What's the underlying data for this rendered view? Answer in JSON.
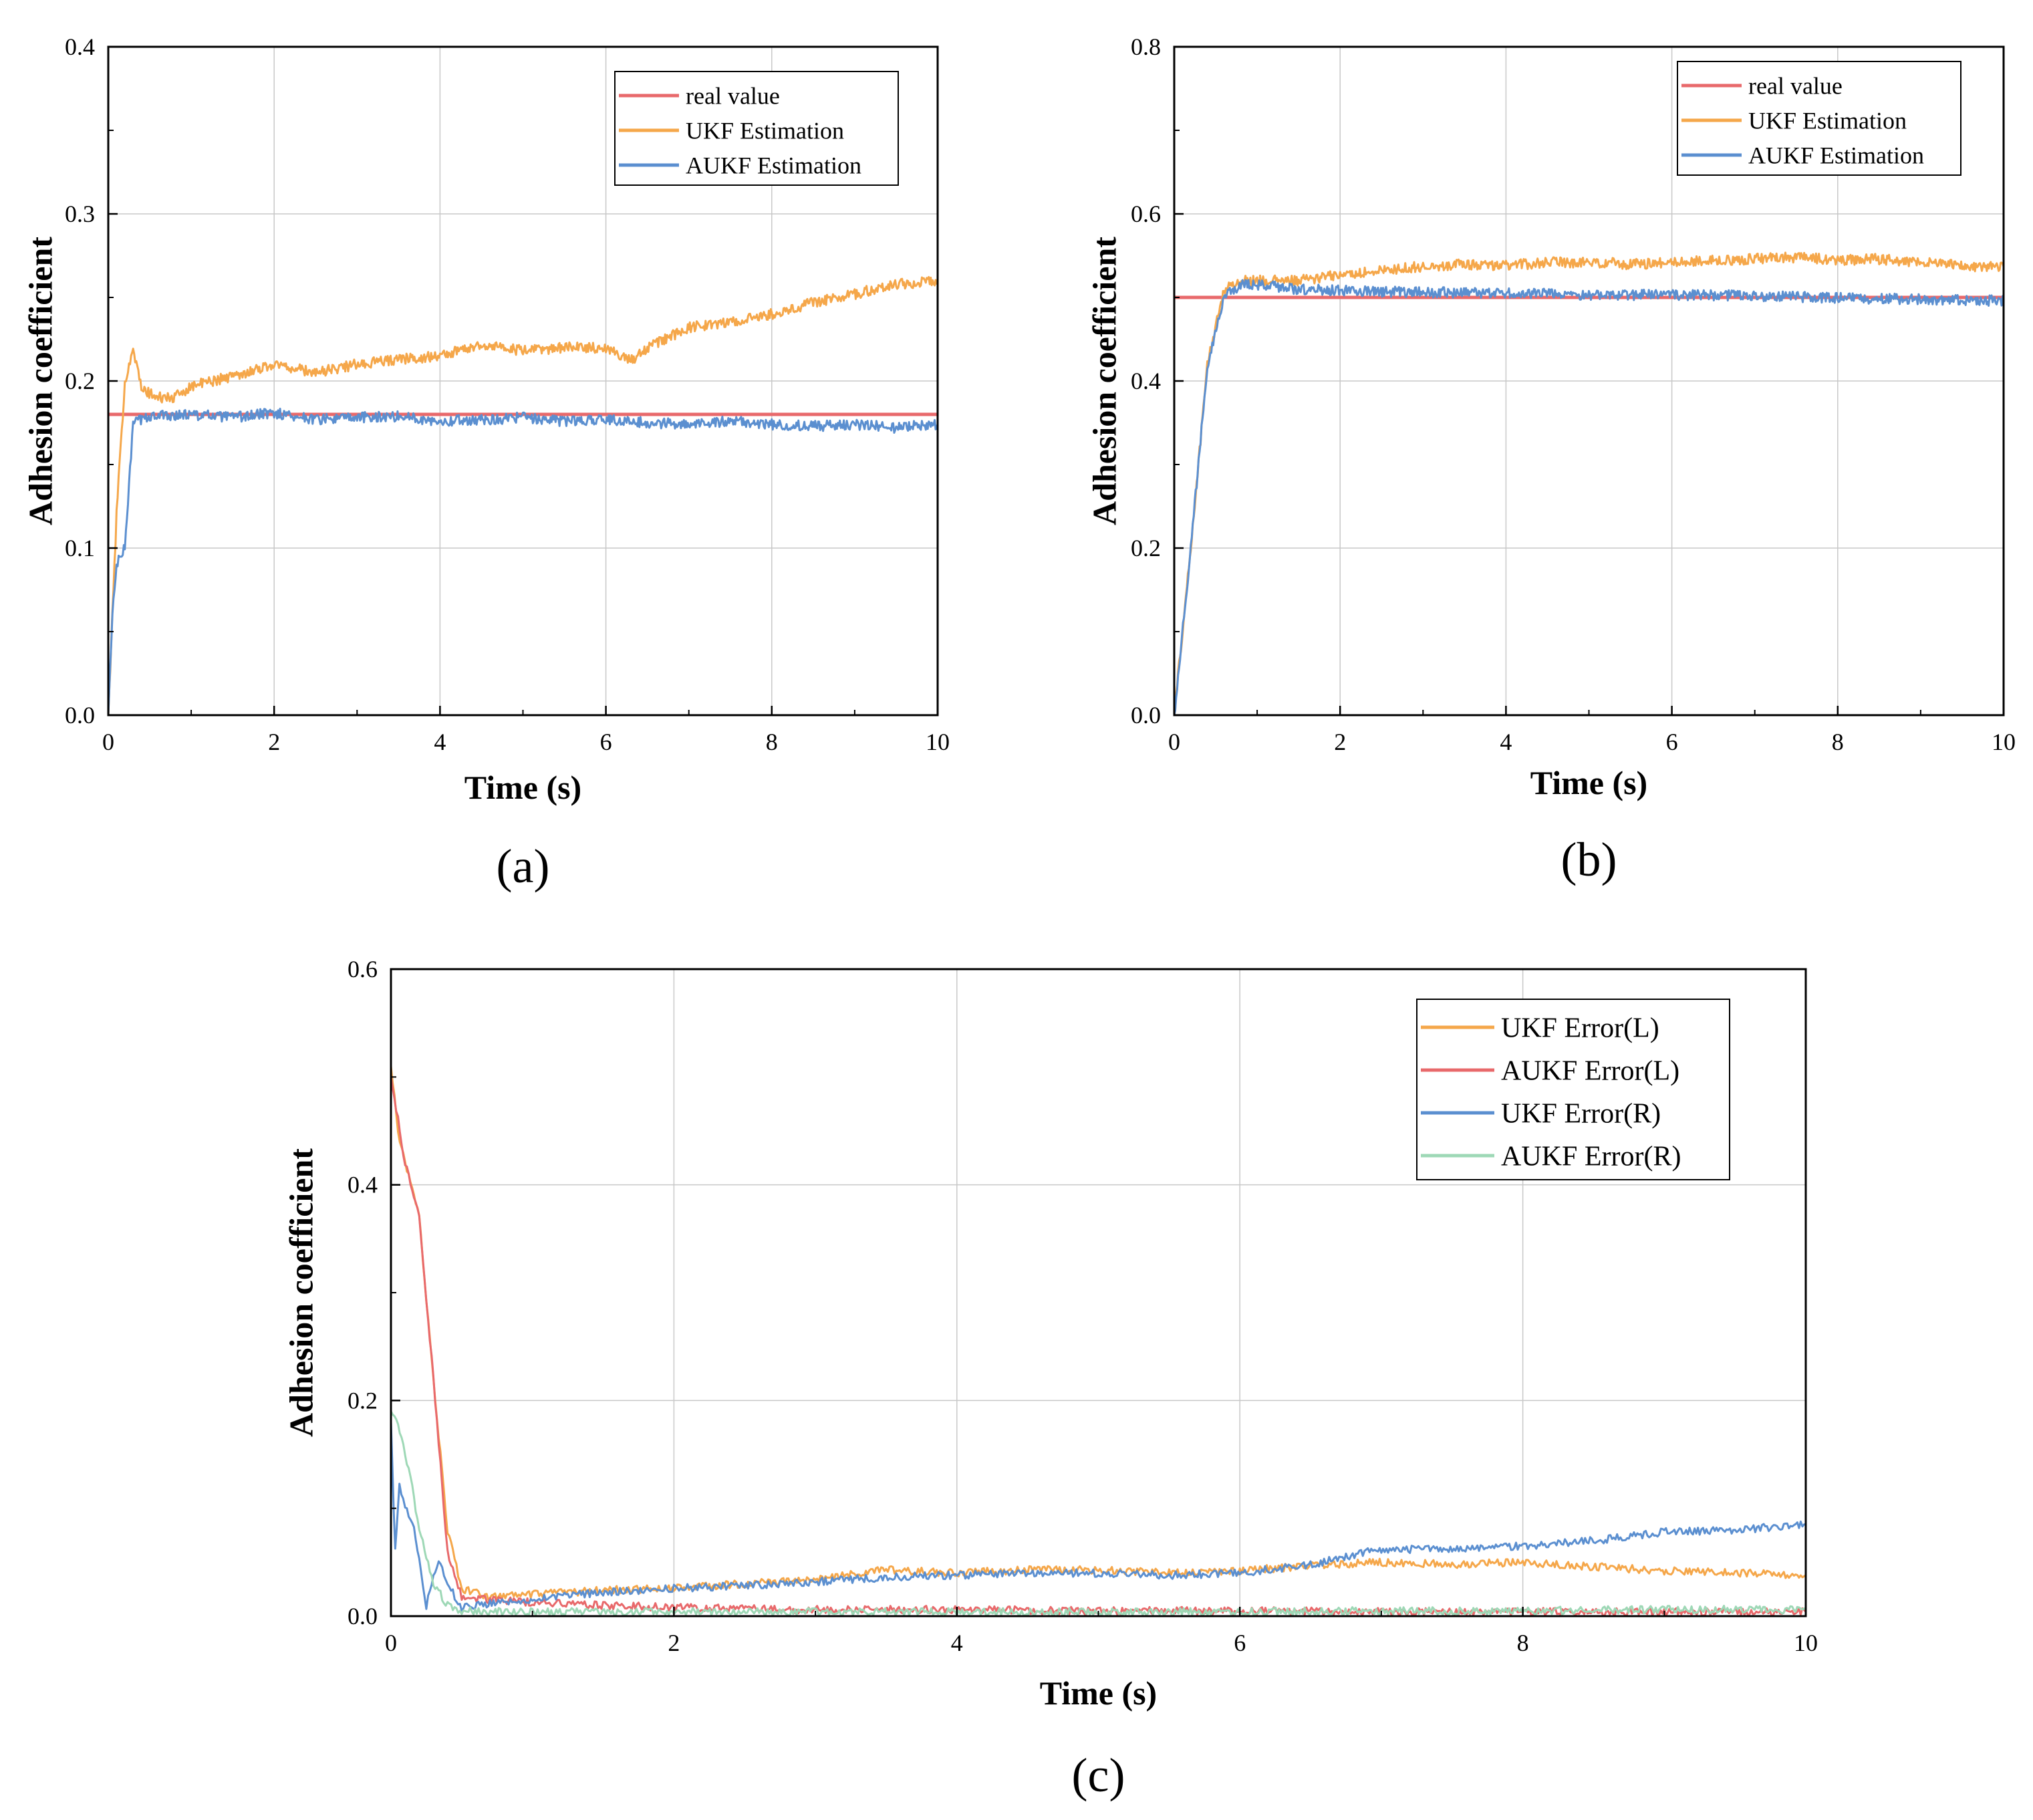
{
  "chart_data": [
    {
      "id": "a",
      "type": "line",
      "panel_label": "(a)",
      "xlabel": "Time (s)",
      "ylabel": "Adhesion coefficient",
      "xlim": [
        0,
        10
      ],
      "ylim": [
        0,
        0.4
      ],
      "xticks": [
        "0",
        "2",
        "4",
        "6",
        "8",
        "10"
      ],
      "yticks": [
        "0.0",
        "0.1",
        "0.2",
        "0.3",
        "0.4"
      ],
      "grid": true,
      "legend_position": "top-right",
      "series": [
        {
          "name": "real value",
          "color": "#e8696b",
          "points": [
            [
              0,
              0.18
            ],
            [
              10,
              0.18
            ]
          ]
        },
        {
          "name": "UKF Estimation",
          "color": "#f5a74a",
          "points": [
            [
              0,
              0.0
            ],
            [
              0.1,
              0.12
            ],
            [
              0.2,
              0.2
            ],
            [
              0.3,
              0.22
            ],
            [
              0.4,
              0.195
            ],
            [
              0.6,
              0.19
            ],
            [
              0.8,
              0.19
            ],
            [
              1,
              0.197
            ],
            [
              1.5,
              0.203
            ],
            [
              2,
              0.21
            ],
            [
              2.5,
              0.205
            ],
            [
              3,
              0.21
            ],
            [
              3.5,
              0.213
            ],
            [
              4,
              0.215
            ],
            [
              4.5,
              0.222
            ],
            [
              5,
              0.218
            ],
            [
              5.5,
              0.22
            ],
            [
              6,
              0.22
            ],
            [
              6.3,
              0.212
            ],
            [
              6.5,
              0.22
            ],
            [
              7,
              0.232
            ],
            [
              7.5,
              0.235
            ],
            [
              8,
              0.24
            ],
            [
              8.5,
              0.247
            ],
            [
              9,
              0.252
            ],
            [
              9.5,
              0.258
            ],
            [
              10,
              0.26
            ]
          ]
        },
        {
          "name": "AUKF Estimation",
          "color": "#5b8fd0",
          "points": [
            [
              0,
              0.0
            ],
            [
              0.05,
              0.06
            ],
            [
              0.1,
              0.09
            ],
            [
              0.2,
              0.1
            ],
            [
              0.3,
              0.175
            ],
            [
              0.5,
              0.179
            ],
            [
              1,
              0.18
            ],
            [
              1.5,
              0.178
            ],
            [
              2,
              0.181
            ],
            [
              2.5,
              0.177
            ],
            [
              3,
              0.178
            ],
            [
              3.5,
              0.179
            ],
            [
              4,
              0.176
            ],
            [
              4.5,
              0.177
            ],
            [
              5,
              0.178
            ],
            [
              5.5,
              0.176
            ],
            [
              6,
              0.177
            ],
            [
              6.5,
              0.175
            ],
            [
              7,
              0.174
            ],
            [
              7.5,
              0.176
            ],
            [
              8,
              0.174
            ],
            [
              8.5,
              0.173
            ],
            [
              9,
              0.174
            ],
            [
              9.5,
              0.172
            ],
            [
              10,
              0.174
            ]
          ]
        }
      ]
    },
    {
      "id": "b",
      "type": "line",
      "panel_label": "(b)",
      "xlabel": "Time (s)",
      "ylabel": "Adhesion coefficient",
      "xlim": [
        0,
        10
      ],
      "ylim": [
        0,
        0.8
      ],
      "xticks": [
        "0",
        "2",
        "4",
        "6",
        "8",
        "10"
      ],
      "yticks": [
        "0.0",
        "0.2",
        "0.4",
        "0.6",
        "0.8"
      ],
      "grid": true,
      "legend_position": "top-right",
      "series": [
        {
          "name": "real value",
          "color": "#e8696b",
          "points": [
            [
              0,
              0.5
            ],
            [
              10,
              0.5
            ]
          ]
        },
        {
          "name": "UKF Estimation",
          "color": "#f5a74a",
          "points": [
            [
              0,
              0.0
            ],
            [
              0.2,
              0.2
            ],
            [
              0.4,
              0.42
            ],
            [
              0.6,
              0.51
            ],
            [
              0.8,
              0.52
            ],
            [
              1,
              0.52
            ],
            [
              1.5,
              0.52
            ],
            [
              2,
              0.527
            ],
            [
              2.5,
              0.532
            ],
            [
              3,
              0.537
            ],
            [
              3.5,
              0.54
            ],
            [
              4,
              0.538
            ],
            [
              4.5,
              0.542
            ],
            [
              5,
              0.542
            ],
            [
              5.5,
              0.54
            ],
            [
              6,
              0.542
            ],
            [
              6.5,
              0.544
            ],
            [
              7,
              0.546
            ],
            [
              7.5,
              0.548
            ],
            [
              8,
              0.545
            ],
            [
              8.5,
              0.546
            ],
            [
              9,
              0.542
            ],
            [
              9.5,
              0.538
            ],
            [
              10,
              0.537
            ]
          ]
        },
        {
          "name": "AUKF Estimation",
          "color": "#5b8fd0",
          "points": [
            [
              0,
              0.0
            ],
            [
              0.2,
              0.2
            ],
            [
              0.4,
              0.42
            ],
            [
              0.6,
              0.5
            ],
            [
              0.8,
              0.515
            ],
            [
              1,
              0.515
            ],
            [
              1.5,
              0.51
            ],
            [
              2,
              0.508
            ],
            [
              3,
              0.506
            ],
            [
              4,
              0.505
            ],
            [
              5,
              0.503
            ],
            [
              6,
              0.503
            ],
            [
              7,
              0.502
            ],
            [
              8,
              0.499
            ],
            [
              9,
              0.498
            ],
            [
              10,
              0.496
            ]
          ]
        }
      ]
    },
    {
      "id": "c",
      "type": "line",
      "panel_label": "(c)",
      "xlabel": "Time (s)",
      "ylabel": "Adhesion coefficient",
      "xlim": [
        0,
        10
      ],
      "ylim": [
        0,
        0.6
      ],
      "xticks": [
        "0",
        "2",
        "4",
        "6",
        "8",
        "10"
      ],
      "yticks": [
        "0.0",
        "0.2",
        "0.4",
        "0.6"
      ],
      "grid": true,
      "legend_position": "top-right",
      "series": [
        {
          "name": "UKF Error(L)",
          "color": "#f5a74a",
          "points": [
            [
              0,
              0.51
            ],
            [
              0.05,
              0.45
            ],
            [
              0.1,
              0.42
            ],
            [
              0.2,
              0.37
            ],
            [
              0.3,
              0.22
            ],
            [
              0.4,
              0.08
            ],
            [
              0.5,
              0.025
            ],
            [
              0.7,
              0.018
            ],
            [
              1,
              0.02
            ],
            [
              1.5,
              0.024
            ],
            [
              2,
              0.026
            ],
            [
              2.5,
              0.03
            ],
            [
              3,
              0.034
            ],
            [
              3.5,
              0.043
            ],
            [
              4,
              0.04
            ],
            [
              4.5,
              0.043
            ],
            [
              5,
              0.043
            ],
            [
              5.5,
              0.04
            ],
            [
              6,
              0.042
            ],
            [
              6.5,
              0.047
            ],
            [
              7,
              0.05
            ],
            [
              7.5,
              0.048
            ],
            [
              8,
              0.05
            ],
            [
              8.5,
              0.046
            ],
            [
              9,
              0.042
            ],
            [
              9.5,
              0.04
            ],
            [
              10,
              0.038
            ]
          ]
        },
        {
          "name": "AUKF Error(L)",
          "color": "#e8696b",
          "points": [
            [
              0,
              0.5
            ],
            [
              0.05,
              0.46
            ],
            [
              0.1,
              0.42
            ],
            [
              0.2,
              0.37
            ],
            [
              0.3,
              0.22
            ],
            [
              0.4,
              0.06
            ],
            [
              0.5,
              0.018
            ],
            [
              0.7,
              0.015
            ],
            [
              1,
              0.013
            ],
            [
              1.5,
              0.01
            ],
            [
              2,
              0.008
            ],
            [
              3,
              0.006
            ],
            [
              4,
              0.006
            ],
            [
              5,
              0.005
            ],
            [
              6,
              0.005
            ],
            [
              7,
              0.004
            ],
            [
              8,
              0.004
            ],
            [
              9,
              0.004
            ],
            [
              10,
              0.004
            ]
          ]
        },
        {
          "name": "UKF Error(R)",
          "color": "#5b8fd0",
          "points": [
            [
              0,
              0.18
            ],
            [
              0.03,
              0.06
            ],
            [
              0.06,
              0.12
            ],
            [
              0.1,
              0.1
            ],
            [
              0.15,
              0.09
            ],
            [
              0.2,
              0.05
            ],
            [
              0.25,
              0.01
            ],
            [
              0.3,
              0.04
            ],
            [
              0.35,
              0.05
            ],
            [
              0.4,
              0.03
            ],
            [
              0.5,
              0.008
            ],
            [
              0.7,
              0.012
            ],
            [
              1,
              0.016
            ],
            [
              1.5,
              0.022
            ],
            [
              2,
              0.026
            ],
            [
              2.5,
              0.028
            ],
            [
              3,
              0.032
            ],
            [
              3.5,
              0.036
            ],
            [
              4,
              0.038
            ],
            [
              4.5,
              0.04
            ],
            [
              5,
              0.04
            ],
            [
              5.5,
              0.038
            ],
            [
              6,
              0.04
            ],
            [
              6.5,
              0.048
            ],
            [
              7,
              0.062
            ],
            [
              7.5,
              0.062
            ],
            [
              8,
              0.065
            ],
            [
              8.5,
              0.07
            ],
            [
              9,
              0.078
            ],
            [
              9.5,
              0.08
            ],
            [
              10,
              0.085
            ]
          ]
        },
        {
          "name": "AUKF Error(R)",
          "color": "#9ed8b6",
          "points": [
            [
              0,
              0.19
            ],
            [
              0.05,
              0.18
            ],
            [
              0.1,
              0.15
            ],
            [
              0.15,
              0.12
            ],
            [
              0.2,
              0.08
            ],
            [
              0.3,
              0.03
            ],
            [
              0.4,
              0.01
            ],
            [
              0.5,
              0.005
            ],
            [
              1,
              0.004
            ],
            [
              2,
              0.004
            ],
            [
              3,
              0.004
            ],
            [
              4,
              0.004
            ],
            [
              5,
              0.004
            ],
            [
              6,
              0.004
            ],
            [
              7,
              0.005
            ],
            [
              8,
              0.005
            ],
            [
              9,
              0.006
            ],
            [
              10,
              0.006
            ]
          ]
        }
      ]
    }
  ]
}
